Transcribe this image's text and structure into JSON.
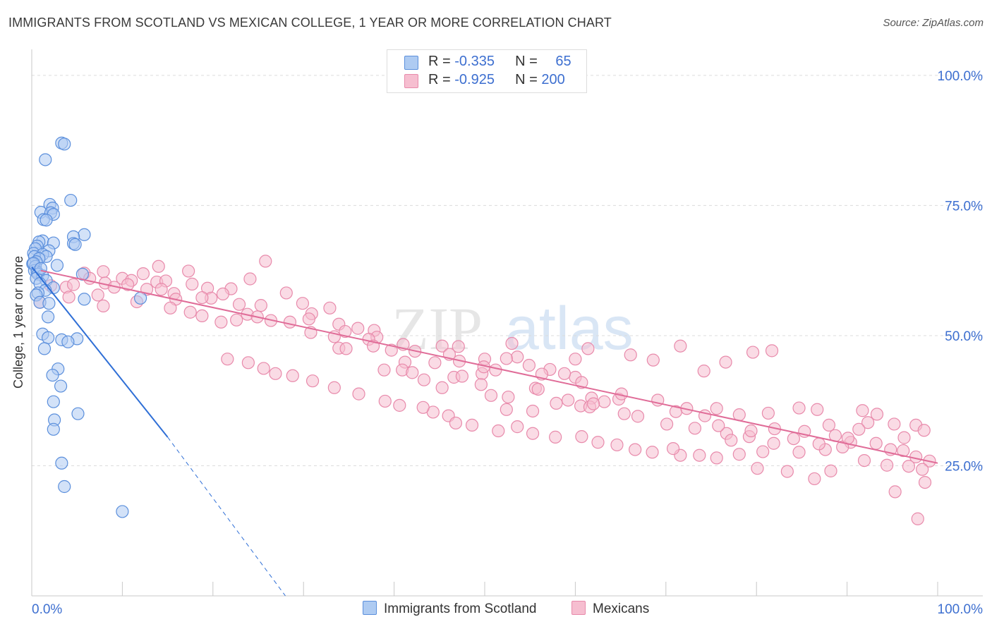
{
  "header": {
    "title": "IMMIGRANTS FROM SCOTLAND VS MEXICAN COLLEGE, 1 YEAR OR MORE CORRELATION CHART",
    "source": "Source: ZipAtlas.com"
  },
  "watermark": {
    "part1": "ZIP",
    "part2": "atlas"
  },
  "legend": {
    "series1": {
      "r_label": "R = ",
      "r_value": "-0.335",
      "n_label": "N = ",
      "n_value": "65"
    },
    "series2": {
      "r_label": "R = ",
      "r_value": "-0.925",
      "n_label": "N = ",
      "n_value": "200"
    }
  },
  "colors": {
    "blue_fill": "#aecbf2",
    "blue_stroke": "#5b8fdc",
    "blue_line": "#2f6fd6",
    "pink_fill": "#f6bed0",
    "pink_stroke": "#e88aab",
    "pink_line": "#e06c98",
    "axis_text": "#3d6fd0",
    "grid": "#dcdcdc"
  },
  "chart_data": {
    "type": "scatter",
    "title": "IMMIGRANTS FROM SCOTLAND VS MEXICAN COLLEGE, 1 YEAR OR MORE CORRELATION CHART",
    "xlabel": "",
    "ylabel": "College, 1 year or more",
    "xlim": [
      0,
      100
    ],
    "ylim": [
      0,
      105
    ],
    "x_tick_labels": [
      "0.0%",
      "100.0%"
    ],
    "y_tick_labels": [
      "25.0%",
      "50.0%",
      "75.0%",
      "100.0%"
    ],
    "y_ticks": [
      25,
      50,
      75,
      100
    ],
    "legend_position": "top-center",
    "series": [
      {
        "name": "Immigrants from Scotland",
        "color": "#aecbf2",
        "r": -0.335,
        "n": 65,
        "trend": {
          "x": [
            0,
            15
          ],
          "y": [
            63.2,
            30.5
          ],
          "dashed_to": [
            28,
            0
          ]
        },
        "points": [
          [
            3.3,
            87.0
          ],
          [
            3.6,
            86.8
          ],
          [
            1.5,
            83.8
          ],
          [
            4.3,
            76.0
          ],
          [
            2.0,
            75.2
          ],
          [
            2.3,
            74.5
          ],
          [
            1.0,
            73.7
          ],
          [
            2.1,
            73.6
          ],
          [
            2.4,
            73.3
          ],
          [
            1.3,
            72.3
          ],
          [
            1.6,
            72.2
          ],
          [
            5.8,
            69.4
          ],
          [
            4.6,
            69.0
          ],
          [
            1.2,
            68.2
          ],
          [
            0.8,
            68.0
          ],
          [
            2.4,
            67.8
          ],
          [
            4.6,
            67.7
          ],
          [
            4.8,
            67.5
          ],
          [
            0.6,
            67.2
          ],
          [
            0.4,
            66.7
          ],
          [
            1.9,
            66.3
          ],
          [
            0.2,
            65.8
          ],
          [
            1.2,
            65.6
          ],
          [
            0.3,
            65.2
          ],
          [
            1.6,
            65.2
          ],
          [
            0.8,
            64.8
          ],
          [
            0.5,
            64.2
          ],
          [
            0.1,
            63.8
          ],
          [
            0.4,
            63.3
          ],
          [
            2.8,
            63.5
          ],
          [
            0.3,
            62.5
          ],
          [
            0.6,
            62.2
          ],
          [
            0.7,
            61.8
          ],
          [
            5.6,
            61.8
          ],
          [
            1.2,
            61.5
          ],
          [
            0.5,
            61.0
          ],
          [
            1.6,
            60.6
          ],
          [
            0.9,
            60.0
          ],
          [
            2.4,
            59.2
          ],
          [
            1.5,
            58.7
          ],
          [
            0.7,
            58.2
          ],
          [
            0.5,
            57.8
          ],
          [
            12.0,
            57.2
          ],
          [
            5.8,
            57.0
          ],
          [
            0.9,
            56.4
          ],
          [
            1.9,
            56.2
          ],
          [
            1.8,
            53.6
          ],
          [
            1.2,
            50.3
          ],
          [
            1.8,
            49.6
          ],
          [
            3.3,
            49.2
          ],
          [
            5.0,
            49.4
          ],
          [
            4.0,
            48.8
          ],
          [
            1.4,
            47.5
          ],
          [
            2.9,
            43.6
          ],
          [
            2.3,
            42.4
          ],
          [
            3.2,
            40.3
          ],
          [
            2.4,
            37.3
          ],
          [
            5.1,
            35.0
          ],
          [
            2.5,
            33.8
          ],
          [
            2.4,
            32.0
          ],
          [
            3.3,
            25.5
          ],
          [
            3.6,
            21.0
          ],
          [
            10.0,
            16.2
          ],
          [
            0.2,
            63.9
          ],
          [
            1.0,
            62.9
          ]
        ]
      },
      {
        "name": "Mexicans",
        "color": "#f6bed0",
        "r": -0.925,
        "n": 200,
        "trend": {
          "x": [
            1,
            100
          ],
          "y": [
            62.5,
            25.5
          ]
        },
        "points": [
          [
            25.8,
            64.3
          ],
          [
            14.0,
            63.3
          ],
          [
            5.8,
            62.0
          ],
          [
            7.9,
            62.3
          ],
          [
            17.3,
            62.4
          ],
          [
            12.3,
            61.9
          ],
          [
            6.4,
            61.0
          ],
          [
            10.0,
            61.0
          ],
          [
            24.1,
            60.9
          ],
          [
            11.0,
            60.6
          ],
          [
            13.8,
            60.3
          ],
          [
            14.8,
            60.5
          ],
          [
            8.1,
            60.1
          ],
          [
            10.6,
            59.8
          ],
          [
            17.7,
            59.9
          ],
          [
            2.1,
            59.6
          ],
          [
            3.8,
            59.3
          ],
          [
            4.6,
            59.8
          ],
          [
            9.1,
            59.3
          ],
          [
            12.7,
            58.9
          ],
          [
            14.3,
            58.9
          ],
          [
            19.4,
            59.1
          ],
          [
            22.0,
            59.0
          ],
          [
            28.1,
            58.2
          ],
          [
            21.1,
            58.0
          ],
          [
            15.7,
            58.1
          ],
          [
            7.3,
            57.8
          ],
          [
            4.1,
            57.4
          ],
          [
            19.8,
            57.2
          ],
          [
            18.8,
            57.3
          ],
          [
            15.9,
            57.0
          ],
          [
            0.9,
            56.4
          ],
          [
            22.9,
            56.0
          ],
          [
            29.9,
            56.2
          ],
          [
            25.3,
            55.8
          ],
          [
            11.6,
            56.5
          ],
          [
            7.9,
            55.7
          ],
          [
            15.3,
            55.3
          ],
          [
            32.9,
            55.3
          ],
          [
            30.9,
            54.2
          ],
          [
            17.5,
            54.5
          ],
          [
            23.8,
            54.1
          ],
          [
            24.9,
            53.6
          ],
          [
            18.8,
            53.8
          ],
          [
            30.6,
            53.2
          ],
          [
            22.6,
            53.0
          ],
          [
            26.4,
            52.9
          ],
          [
            28.5,
            52.6
          ],
          [
            33.9,
            52.2
          ],
          [
            20.9,
            52.6
          ],
          [
            34.6,
            50.8
          ],
          [
            36.0,
            51.4
          ],
          [
            37.8,
            51.0
          ],
          [
            30.8,
            50.6
          ],
          [
            38.1,
            49.7
          ],
          [
            37.2,
            49.3
          ],
          [
            41.0,
            48.3
          ],
          [
            37.7,
            48.0
          ],
          [
            33.4,
            49.8
          ],
          [
            33.9,
            47.6
          ],
          [
            34.7,
            47.5
          ],
          [
            45.3,
            48.0
          ],
          [
            47.1,
            47.9
          ],
          [
            39.7,
            47.2
          ],
          [
            42.3,
            47.0
          ],
          [
            46.1,
            46.4
          ],
          [
            53.6,
            45.9
          ],
          [
            52.4,
            45.6
          ],
          [
            50.0,
            45.5
          ],
          [
            47.2,
            45.1
          ],
          [
            41.2,
            44.9
          ],
          [
            44.5,
            44.8
          ],
          [
            54.9,
            44.3
          ],
          [
            51.2,
            43.4
          ],
          [
            49.7,
            42.7
          ],
          [
            46.6,
            42.0
          ],
          [
            40.9,
            43.4
          ],
          [
            38.9,
            43.4
          ],
          [
            42.0,
            42.9
          ],
          [
            57.2,
            43.5
          ],
          [
            56.3,
            42.6
          ],
          [
            60.0,
            42.0
          ],
          [
            58.8,
            42.7
          ],
          [
            60.7,
            41.0
          ],
          [
            49.6,
            40.6
          ],
          [
            50.7,
            38.5
          ],
          [
            45.3,
            40.0
          ],
          [
            43.3,
            41.5
          ],
          [
            52.6,
            38.2
          ],
          [
            55.6,
            39.9
          ],
          [
            59.2,
            37.6
          ],
          [
            61.8,
            38.0
          ],
          [
            64.8,
            37.8
          ],
          [
            65.1,
            38.8
          ],
          [
            63.2,
            37.3
          ],
          [
            60.6,
            36.5
          ],
          [
            61.6,
            36.3
          ],
          [
            65.4,
            35.0
          ],
          [
            71.1,
            35.4
          ],
          [
            72.3,
            36.0
          ],
          [
            75.6,
            36.0
          ],
          [
            78.1,
            34.8
          ],
          [
            81.3,
            35.1
          ],
          [
            84.7,
            36.1
          ],
          [
            86.7,
            35.8
          ],
          [
            91.7,
            35.6
          ],
          [
            93.3,
            34.9
          ],
          [
            92.3,
            33.3
          ],
          [
            95.2,
            33.0
          ],
          [
            97.6,
            32.8
          ],
          [
            98.5,
            31.8
          ],
          [
            96.3,
            30.4
          ],
          [
            93.2,
            29.3
          ],
          [
            90.4,
            29.5
          ],
          [
            89.5,
            28.6
          ],
          [
            87.6,
            28.1
          ],
          [
            84.7,
            27.6
          ],
          [
            80.7,
            27.7
          ],
          [
            78.1,
            27.2
          ],
          [
            75.6,
            26.5
          ],
          [
            73.7,
            27.0
          ],
          [
            71.6,
            27.0
          ],
          [
            70.8,
            28.3
          ],
          [
            68.5,
            27.6
          ],
          [
            66.6,
            28.1
          ],
          [
            64.6,
            29.0
          ],
          [
            62.5,
            29.5
          ],
          [
            60.7,
            30.6
          ],
          [
            57.8,
            30.5
          ],
          [
            55.3,
            31.2
          ],
          [
            53.6,
            32.5
          ],
          [
            51.5,
            31.7
          ],
          [
            48.6,
            32.8
          ],
          [
            46.0,
            34.6
          ],
          [
            44.3,
            35.3
          ],
          [
            43.2,
            36.2
          ],
          [
            40.6,
            36.6
          ],
          [
            39.0,
            37.4
          ],
          [
            36.1,
            38.8
          ],
          [
            33.4,
            40.0
          ],
          [
            31.0,
            41.3
          ],
          [
            28.8,
            42.3
          ],
          [
            26.9,
            42.7
          ],
          [
            25.6,
            43.7
          ],
          [
            23.9,
            44.8
          ],
          [
            21.6,
            45.5
          ],
          [
            55.9,
            39.7
          ],
          [
            57.9,
            37.0
          ],
          [
            69.1,
            37.6
          ],
          [
            74.3,
            34.6
          ],
          [
            76.7,
            31.2
          ],
          [
            79.2,
            30.6
          ],
          [
            81.9,
            29.3
          ],
          [
            84.1,
            30.2
          ],
          [
            86.9,
            29.2
          ],
          [
            88.7,
            30.8
          ],
          [
            90.1,
            30.3
          ],
          [
            91.3,
            32.0
          ],
          [
            94.8,
            28.1
          ],
          [
            96.2,
            27.9
          ],
          [
            97.6,
            26.7
          ],
          [
            99.1,
            25.9
          ],
          [
            98.3,
            24.3
          ],
          [
            96.8,
            24.9
          ],
          [
            94.4,
            25.1
          ],
          [
            91.9,
            26.0
          ],
          [
            88.2,
            24.0
          ],
          [
            86.4,
            22.5
          ],
          [
            83.4,
            23.9
          ],
          [
            80.1,
            24.5
          ],
          [
            98.6,
            21.8
          ],
          [
            95.3,
            20.0
          ],
          [
            97.8,
            14.8
          ],
          [
            46.8,
            33.2
          ],
          [
            52.4,
            35.8
          ],
          [
            55.3,
            35.5
          ],
          [
            62.0,
            36.9
          ],
          [
            66.9,
            34.5
          ],
          [
            70.1,
            33.0
          ],
          [
            73.2,
            32.2
          ],
          [
            75.8,
            32.7
          ],
          [
            77.2,
            29.9
          ],
          [
            79.4,
            31.7
          ],
          [
            82.0,
            32.1
          ],
          [
            85.3,
            31.6
          ],
          [
            88.0,
            32.8
          ],
          [
            47.5,
            42.2
          ],
          [
            49.9,
            44.0
          ],
          [
            53.0,
            48.5
          ],
          [
            60.0,
            45.5
          ],
          [
            61.4,
            47.5
          ],
          [
            66.1,
            46.3
          ],
          [
            68.6,
            45.3
          ],
          [
            71.6,
            48.0
          ],
          [
            74.2,
            43.2
          ],
          [
            76.6,
            44.9
          ],
          [
            79.6,
            46.8
          ],
          [
            81.7,
            47.1
          ]
        ]
      }
    ]
  },
  "bottom_legend": {
    "series1": "Immigrants from Scotland",
    "series2": "Mexicans"
  }
}
